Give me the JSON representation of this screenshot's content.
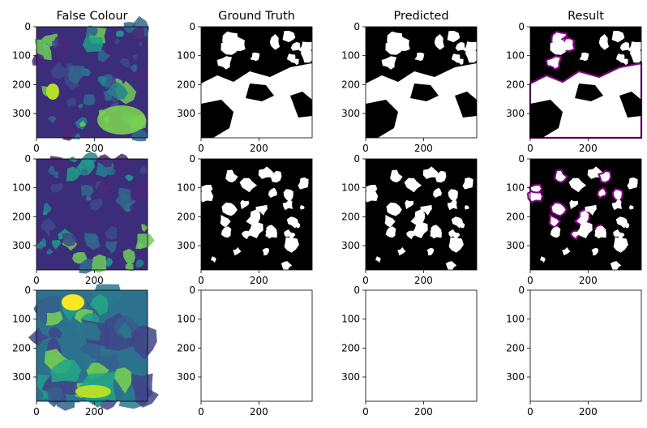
{
  "chart_data": {
    "type": "image-grid",
    "columns": [
      "False Colour",
      "Ground Truth",
      "Predicted",
      "Result"
    ],
    "axes": {
      "xlim": [
        0,
        384
      ],
      "ylim": [
        384,
        0
      ],
      "xticks": [
        0,
        200
      ],
      "yticks": [
        0,
        100,
        200,
        300
      ]
    },
    "colors": {
      "viridis_dark": "#440154",
      "viridis_mid": "#21918c",
      "viridis_light": "#fde725",
      "mask_fg": "#ffffff",
      "mask_bg": "#000000",
      "mismatch": "#800080"
    },
    "rows": [
      {
        "panels": [
          "viridis-image",
          "binary-mask",
          "binary-mask",
          "overlay-mask"
        ]
      },
      {
        "panels": [
          "viridis-image",
          "binary-mask",
          "binary-mask",
          "overlay-mask"
        ]
      },
      {
        "panels": [
          "viridis-image",
          "empty",
          "empty",
          "empty"
        ]
      }
    ]
  }
}
